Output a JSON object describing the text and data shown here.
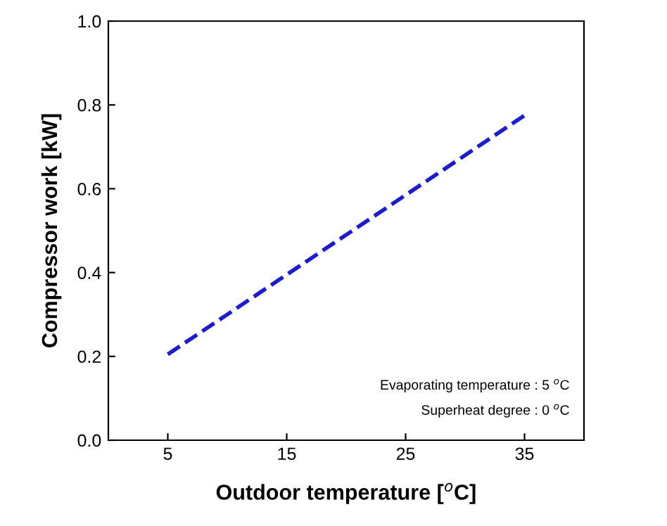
{
  "chart_data": {
    "type": "line",
    "xlabel": "Outdoor temperature [$^{o}$C]",
    "ylabel": "Compressor work [kW]",
    "x": [
      5,
      10,
      15,
      20,
      25,
      30,
      35
    ],
    "series": [
      {
        "color": "#1c1cc8",
        "values": [
          0.205,
          0.3,
          0.395,
          0.49,
          0.585,
          0.68,
          0.775
        ]
      }
    ],
    "xlim": [
      0,
      40
    ],
    "xticks": [
      5,
      15,
      25,
      35
    ],
    "ylim": [
      0,
      1
    ],
    "yticks": [
      {
        "value": 0,
        "label": "0.0"
      },
      {
        "value": 0.2,
        "label": "0.2"
      },
      {
        "value": 0.4,
        "label": "0.4"
      },
      {
        "value": 0.6,
        "label": "0.6"
      },
      {
        "value": 0.8,
        "label": "0.8"
      },
      {
        "value": 1,
        "label": "1.0"
      }
    ],
    "line_style": "dashed",
    "grid": false,
    "legend": false,
    "annotations": [
      "Evaporating temperature : 5 $^{o}$C",
      "Superheat degree : 0 $^{o}$C"
    ]
  }
}
